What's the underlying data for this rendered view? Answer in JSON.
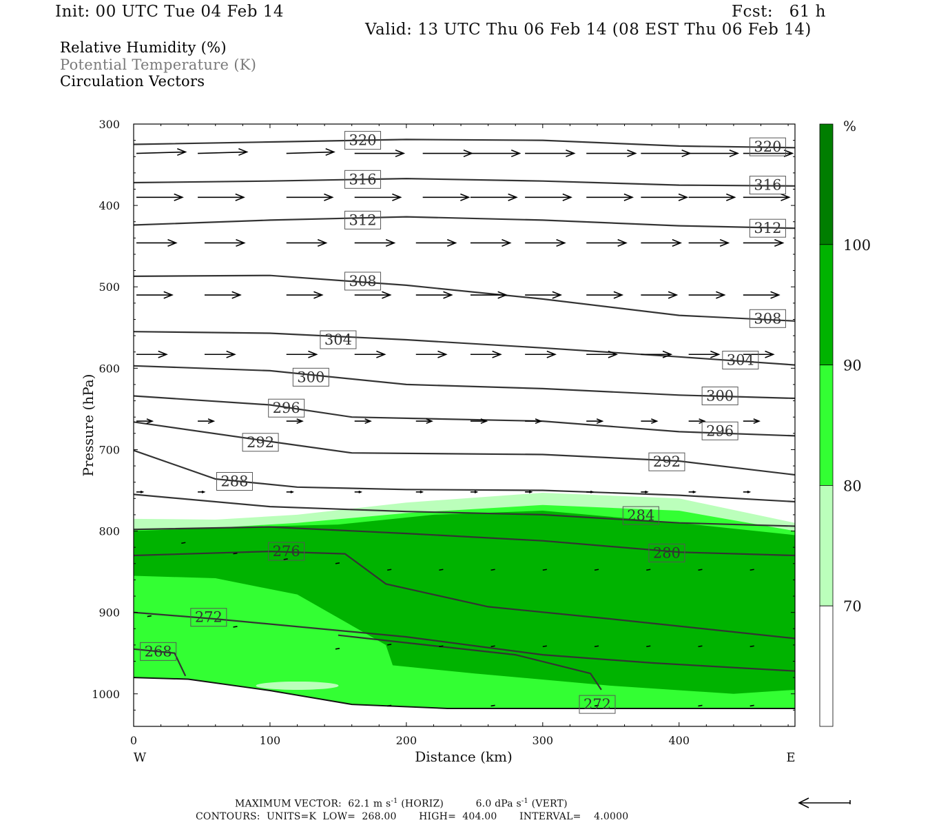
{
  "header": {
    "init": "Init: 00 UTC Tue 04 Feb 14",
    "fcst": "Fcst:   61 h",
    "valid": "Valid: 13 UTC Thu 06 Feb 14 (08 EST Thu 06 Feb 14)"
  },
  "legend_lines": [
    {
      "text": "Relative Humidity (%)",
      "color": "#000000"
    },
    {
      "text": "Potential Temperature (K)",
      "color": "#7a7a7a"
    },
    {
      "text": "Circulation Vectors",
      "color": "#000000"
    }
  ],
  "footer": {
    "max_vector_label": "MAXIMUM VECTOR:",
    "max_vector_horiz": "62.1 m s",
    "horiz_unit_tag": "(HORIZ)",
    "max_vector_vert": "6.0 dPa s",
    "vert_unit_tag": "(VERT)",
    "exponent": "-1",
    "contours": "CONTOURS:  UNITS=K  LOW=  268.00       HIGH=  404.00       INTERVAL=    4.0000"
  },
  "colorbar": {
    "unit": "%",
    "levels": [
      100,
      90,
      80,
      70
    ],
    "colors": [
      "#007e00",
      "#00b300",
      "#33ff33",
      "#bbffbb",
      "#ffffff"
    ]
  },
  "chart_data": {
    "type": "cross-section",
    "xlabel": "Distance (km)",
    "ylabel": "Pressure (hPa)",
    "xlim": [
      0,
      485
    ],
    "ylim": [
      300,
      1040
    ],
    "x_ticks": [
      0,
      100,
      200,
      300,
      400
    ],
    "y_ticks": [
      300,
      400,
      500,
      600,
      700,
      800,
      900,
      1000
    ],
    "x_end_labels": {
      "left": "W",
      "right": "E"
    },
    "rh_fill": {
      "band_70_80": {
        "top": [
          [
            0,
            785
          ],
          [
            60,
            786
          ],
          [
            120,
            780
          ],
          [
            200,
            765
          ],
          [
            300,
            753
          ],
          [
            400,
            760
          ],
          [
            485,
            790
          ]
        ],
        "color": "#bbffbb"
      },
      "band_80_90": {
        "top": [
          [
            0,
            798
          ],
          [
            60,
            796
          ],
          [
            120,
            790
          ],
          [
            200,
            778
          ],
          [
            300,
            768
          ],
          [
            400,
            775
          ],
          [
            485,
            800
          ]
        ],
        "color": "#33ff33"
      },
      "band_90_100": {
        "top": [
          [
            0,
            800
          ],
          [
            80,
            795
          ],
          [
            150,
            792
          ],
          [
            220,
            780
          ],
          [
            300,
            775
          ],
          [
            400,
            790
          ],
          [
            485,
            805
          ]
        ],
        "bottom_left": [
          [
            0,
            855
          ],
          [
            60,
            858
          ],
          [
            120,
            878
          ],
          [
            185,
            940
          ],
          [
            190,
            965
          ],
          [
            250,
            975
          ],
          [
            350,
            990
          ],
          [
            440,
            1000
          ],
          [
            485,
            995
          ]
        ],
        "color": "#00b300"
      },
      "terrain_floor": [
        [
          0,
          980
        ],
        [
          40,
          982
        ],
        [
          100,
          996
        ],
        [
          160,
          1013
        ],
        [
          230,
          1018
        ],
        [
          485,
          1018
        ]
      ]
    },
    "theta_contours": [
      {
        "value": 320,
        "p": [
          [
            0,
            325
          ],
          [
            100,
            322
          ],
          [
            200,
            319
          ],
          [
            300,
            320
          ],
          [
            400,
            327
          ],
          [
            485,
            329
          ]
        ],
        "labels": [
          [
            168,
            320
          ],
          [
            465,
            328
          ]
        ]
      },
      {
        "value": 316,
        "p": [
          [
            0,
            372
          ],
          [
            100,
            370
          ],
          [
            200,
            367
          ],
          [
            300,
            370
          ],
          [
            400,
            375
          ],
          [
            485,
            376
          ]
        ],
        "labels": [
          [
            168,
            368
          ],
          [
            465,
            375
          ]
        ]
      },
      {
        "value": 312,
        "p": [
          [
            0,
            424
          ],
          [
            100,
            418
          ],
          [
            200,
            414
          ],
          [
            300,
            418
          ],
          [
            400,
            425
          ],
          [
            485,
            428
          ]
        ],
        "labels": [
          [
            168,
            418
          ],
          [
            465,
            428
          ]
        ]
      },
      {
        "value": 308,
        "p": [
          [
            0,
            487
          ],
          [
            100,
            486
          ],
          [
            200,
            498
          ],
          [
            300,
            515
          ],
          [
            400,
            535
          ],
          [
            485,
            542
          ]
        ],
        "labels": [
          [
            168,
            493
          ],
          [
            465,
            539
          ]
        ]
      },
      {
        "value": 304,
        "p": [
          [
            0,
            555
          ],
          [
            100,
            557
          ],
          [
            200,
            565
          ],
          [
            300,
            575
          ],
          [
            400,
            586
          ],
          [
            485,
            596
          ]
        ],
        "labels": [
          [
            150,
            565
          ],
          [
            445,
            590
          ]
        ]
      },
      {
        "value": 300,
        "p": [
          [
            0,
            597
          ],
          [
            100,
            603
          ],
          [
            200,
            620
          ],
          [
            300,
            625
          ],
          [
            400,
            633
          ],
          [
            485,
            637
          ]
        ],
        "labels": [
          [
            130,
            611
          ],
          [
            430,
            634
          ]
        ]
      },
      {
        "value": 296,
        "p": [
          [
            0,
            634
          ],
          [
            100,
            645
          ],
          [
            160,
            660
          ],
          [
            300,
            665
          ],
          [
            400,
            678
          ],
          [
            485,
            683
          ]
        ],
        "labels": [
          [
            112,
            649
          ],
          [
            430,
            677
          ]
        ]
      },
      {
        "value": 292,
        "p": [
          [
            0,
            666
          ],
          [
            100,
            690
          ],
          [
            160,
            704
          ],
          [
            300,
            706
          ],
          [
            400,
            714
          ],
          [
            485,
            731
          ]
        ],
        "labels": [
          [
            93,
            691
          ],
          [
            391,
            715
          ]
        ]
      },
      {
        "value": 288,
        "p": [
          [
            0,
            701
          ],
          [
            60,
            736
          ],
          [
            120,
            746
          ],
          [
            200,
            749
          ],
          [
            300,
            750
          ],
          [
            400,
            756
          ],
          [
            485,
            764
          ]
        ],
        "labels": [
          [
            74,
            739
          ]
        ]
      },
      {
        "value": 284,
        "p": [
          [
            0,
            755
          ],
          [
            100,
            770
          ],
          [
            200,
            776
          ],
          [
            300,
            780
          ],
          [
            400,
            790
          ],
          [
            485,
            794
          ]
        ],
        "labels": [
          [
            372,
            781
          ]
        ]
      },
      {
        "value": 280,
        "p": [
          [
            0,
            798
          ],
          [
            100,
            795
          ],
          [
            200,
            803
          ],
          [
            300,
            812
          ],
          [
            400,
            826
          ],
          [
            485,
            830
          ]
        ],
        "labels": [
          [
            391,
            827
          ]
        ]
      },
      {
        "value": 276,
        "p": [
          [
            0,
            830
          ],
          [
            100,
            825
          ],
          [
            155,
            828
          ],
          [
            185,
            865
          ],
          [
            260,
            893
          ],
          [
            350,
            908
          ],
          [
            485,
            932
          ]
        ],
        "labels": [
          [
            112,
            825
          ]
        ]
      },
      {
        "value": 272,
        "p": [
          [
            0,
            900
          ],
          [
            60,
            908
          ],
          [
            200,
            930
          ],
          [
            300,
            952
          ],
          [
            380,
            962
          ],
          [
            485,
            972
          ]
        ],
        "labels": [
          [
            55,
            906
          ]
        ]
      },
      {
        "value": 268,
        "p": [
          [
            0,
            945
          ],
          [
            30,
            950
          ],
          [
            38,
            978
          ]
        ],
        "labels": [
          [
            18,
            948
          ]
        ]
      },
      {
        "value": 272,
        "p": [
          [
            150,
            928
          ],
          [
            280,
            952
          ],
          [
            335,
            975
          ],
          [
            343,
            995
          ]
        ],
        "labels": [
          [
            340,
            1013
          ]
        ]
      }
    ],
    "vector_rows": [
      {
        "p": 336,
        "x": [
          0,
          45,
          110,
          160,
          210,
          245,
          285,
          330,
          370,
          405,
          445
        ],
        "u": [
          62,
          62,
          60,
          62,
          62,
          62,
          62,
          62,
          62,
          62,
          62
        ],
        "w": [
          -1,
          -1,
          -1,
          0,
          0,
          0,
          0,
          0,
          0,
          0,
          0
        ]
      },
      {
        "p": 390,
        "x": [
          0,
          45,
          110,
          160,
          210,
          245,
          285,
          330,
          370,
          405,
          445
        ],
        "u": [
          58,
          58,
          58,
          58,
          58,
          58,
          58,
          58,
          58,
          58,
          58
        ],
        "w": [
          0,
          0,
          0,
          0,
          0,
          0,
          0,
          0,
          0,
          0,
          0
        ]
      },
      {
        "p": 446,
        "x": [
          0,
          50,
          110,
          160,
          205,
          245,
          285,
          330,
          370,
          405,
          445
        ],
        "u": [
          50,
          50,
          50,
          50,
          50,
          50,
          50,
          50,
          50,
          50,
          50
        ],
        "w": [
          0,
          0,
          0,
          0,
          0,
          0,
          0,
          0,
          0,
          0,
          0
        ]
      },
      {
        "p": 510,
        "x": [
          0,
          50,
          110,
          160,
          205,
          245,
          285,
          330,
          370,
          405,
          445
        ],
        "u": [
          45,
          45,
          45,
          45,
          45,
          45,
          45,
          45,
          45,
          45,
          45
        ],
        "w": [
          0,
          0,
          0,
          0,
          0,
          0,
          0,
          0,
          0,
          0,
          0
        ]
      },
      {
        "p": 583,
        "x": [
          0,
          50,
          110,
          160,
          205,
          245,
          285,
          330,
          370,
          405,
          445
        ],
        "u": [
          38,
          38,
          38,
          38,
          38,
          38,
          38,
          38,
          38,
          38,
          38
        ],
        "w": [
          0,
          0,
          0,
          0,
          0,
          0,
          0,
          0,
          0,
          0,
          0
        ]
      },
      {
        "p": 665,
        "x": [
          0,
          45,
          110,
          160,
          205,
          245,
          285,
          330,
          370,
          405,
          445
        ],
        "u": [
          20,
          20,
          20,
          20,
          20,
          20,
          20,
          20,
          20,
          20,
          20
        ],
        "w": [
          0,
          0,
          0,
          0,
          0,
          0,
          0,
          0,
          0,
          0,
          0
        ]
      },
      {
        "p": 752,
        "x": [
          0,
          45,
          110,
          160,
          205,
          245,
          285,
          330,
          370,
          405,
          445
        ],
        "u": [
          8,
          8,
          8,
          8,
          8,
          8,
          8,
          8,
          8,
          8,
          8
        ],
        "w": [
          0,
          0,
          0,
          0,
          0,
          0,
          0,
          0,
          0,
          0,
          0
        ]
      }
    ]
  }
}
